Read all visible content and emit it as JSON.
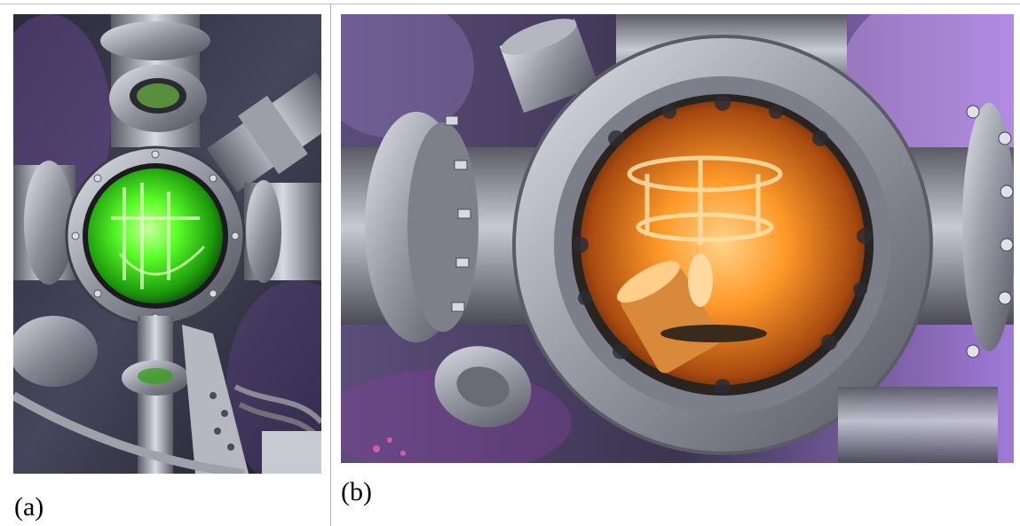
{
  "panels": [
    {
      "caption": "(a)",
      "accent_color": "#5cff2a"
    },
    {
      "caption": "(b)",
      "accent_color": "#ff9a2a"
    }
  ],
  "colors": {
    "rule": "#b8b8b8",
    "steel": "#a8aab3",
    "purple_glow": "#b07be0"
  }
}
